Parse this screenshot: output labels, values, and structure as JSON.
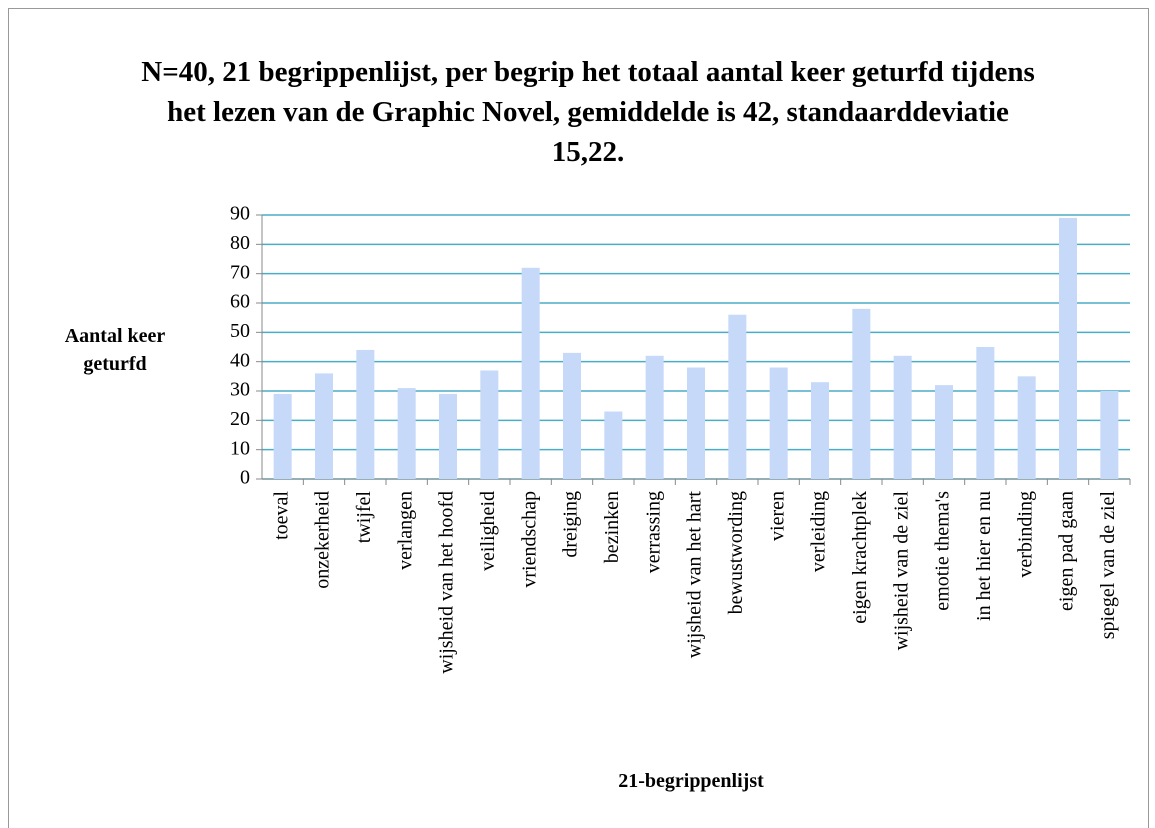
{
  "chart_data": {
    "type": "bar",
    "title": "N=40, 21 begrippenlijst, per begrip het totaal aantal keer geturfd tijdens het lezen van de Graphic Novel, gemiddelde is 42, standaarddeviatie 15,22.",
    "x_label": "21-begrippenlijst",
    "y_label": "Aantal keer geturfd",
    "categories": [
      "toeval",
      "onzekerheid",
      "twijfel",
      "verlangen",
      "wijsheid van het hoofd",
      "veiligheid",
      "vriendschap",
      "dreiging",
      "bezinken",
      "verrassing",
      "wijsheid van het hart",
      "bewustwording",
      "vieren",
      "verleiding",
      "eigen krachtplek",
      "wijsheid van de ziel",
      "emotie thema's",
      "in het hier en nu",
      "verbinding",
      "eigen pad gaan",
      "spiegel van de ziel"
    ],
    "values": [
      29,
      36,
      44,
      31,
      29,
      37,
      72,
      43,
      23,
      42,
      38,
      56,
      38,
      33,
      58,
      42,
      32,
      45,
      35,
      89,
      30
    ],
    "color": "#c6d9f8",
    "ylim": [
      0,
      90
    ],
    "yticks": [
      0,
      10,
      20,
      30,
      40,
      50,
      60,
      70,
      80,
      90
    ],
    "grid": true,
    "grid_color": "#4bacc6"
  }
}
